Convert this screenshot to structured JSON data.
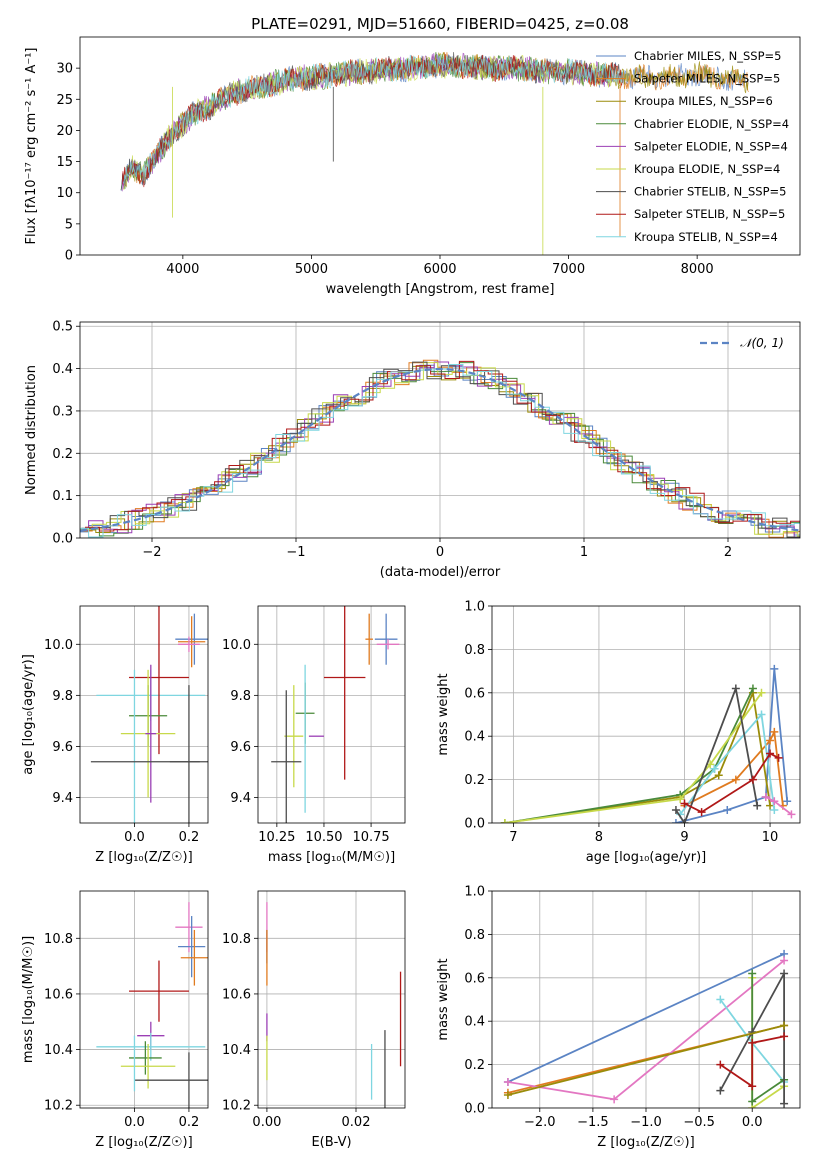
{
  "figure_title": "PLATE=0291, MJD=51660, FIBERID=0425, z=0.08",
  "chart_data": [
    {
      "id": "spectrum",
      "type": "line",
      "xlabel": "wavelength [Angstrom, rest frame]",
      "ylabel": "Flux [fλ10⁻¹⁷ erg cm⁻² s⁻¹ A⁻¹]",
      "xlim": [
        3200,
        8800
      ],
      "ylim": [
        0,
        35
      ],
      "xticks": [
        4000,
        5000,
        6000,
        7000,
        8000
      ],
      "yticks": [
        0,
        5,
        10,
        15,
        20,
        25,
        30
      ],
      "grid": false,
      "legend_position": "top-right",
      "continuum": {
        "x": [
          3520,
          3600,
          3700,
          3800,
          3900,
          4000,
          4100,
          4200,
          4300,
          4400,
          4500,
          4600,
          4700,
          4800,
          4900,
          5000,
          5200,
          5400,
          5600,
          5800,
          6000,
          6200,
          6400,
          6600,
          6800,
          7000,
          7200,
          7400,
          7600,
          7800,
          8000,
          8200,
          8400
        ],
        "y": [
          11,
          14,
          13,
          16,
          19,
          21,
          23,
          23.5,
          25,
          26,
          26.5,
          27,
          27.5,
          28,
          28.5,
          28.5,
          29,
          29.5,
          29.8,
          30,
          30.5,
          30.3,
          30,
          30,
          29.5,
          29.5,
          29,
          28.8,
          28.5,
          28.5,
          29,
          28.5,
          28
        ]
      },
      "series": [
        {
          "name": "Chabrier MILES, N_SSP=5",
          "color": "#5b84c4"
        },
        {
          "name": "Salpeter MILES, N_SSP=5",
          "color": "#e07b20"
        },
        {
          "name": "Kroupa MILES, N_SSP=6",
          "color": "#9a8c0a"
        },
        {
          "name": "Chabrier ELODIE, N_SSP=4",
          "color": "#4a8a3a"
        },
        {
          "name": "Salpeter ELODIE, N_SSP=4",
          "color": "#9b3fb5"
        },
        {
          "name": "Kroupa ELODIE, N_SSP=4",
          "color": "#c7d94a"
        },
        {
          "name": "Chabrier STELIB, N_SSP=5",
          "color": "#4d4d4d"
        },
        {
          "name": "Salpeter STELIB, N_SSP=5",
          "color": "#b01818"
        },
        {
          "name": "Kroupa STELIB, N_SSP=4",
          "color": "#7fd6e0"
        }
      ]
    },
    {
      "id": "residuals",
      "type": "line",
      "xlabel": "(data-model)/error",
      "ylabel": "Normed distribution",
      "xlim": [
        -2.5,
        2.5
      ],
      "ylim": [
        0,
        0.51
      ],
      "xticks": [
        -2,
        -1,
        0,
        1,
        2
      ],
      "yticks": [
        0.0,
        0.1,
        0.2,
        0.3,
        0.4,
        0.5
      ],
      "grid": true,
      "legend_position": "top-right",
      "reference": {
        "name": "𝒩(0, 1)",
        "color": "#5b84c4"
      },
      "histogram_series": [
        {
          "color": "#5b84c4"
        },
        {
          "color": "#e07b20"
        },
        {
          "color": "#9a8c0a"
        },
        {
          "color": "#4a8a3a"
        },
        {
          "color": "#9b3fb5"
        },
        {
          "color": "#c7d94a"
        },
        {
          "color": "#4d4d4d"
        },
        {
          "color": "#b01818"
        },
        {
          "color": "#7fd6e0"
        }
      ]
    },
    {
      "id": "age_vs_Z",
      "type": "scatter",
      "xlabel": "Z [log₁₀(Z/Z☉)]",
      "ylabel": "age  [log₁₀(age/yr)]",
      "xlim": [
        -0.2,
        0.27
      ],
      "ylim": [
        9.3,
        10.15
      ],
      "xticks": [
        0.0,
        0.2
      ],
      "yticks": [
        9.4,
        9.6,
        9.8,
        10.0
      ],
      "grid": true,
      "points": [
        {
          "x": 0.22,
          "y": 10.02,
          "xerr": 0.07,
          "yerr": 0.1,
          "color": "#5b84c4"
        },
        {
          "x": 0.21,
          "y": 10.01,
          "xerr": 0.05,
          "yerr": 0.1,
          "color": "#e07b20"
        },
        {
          "x": 0.2,
          "y": 10.0,
          "xerr": 0.04,
          "yerr": 0.03,
          "color": "#e377c2"
        },
        {
          "x": 0.06,
          "y": 9.8,
          "xerr": 0.2,
          "yerr": 0.1,
          "color": "#7fd6e0"
        },
        {
          "x": 0.09,
          "y": 9.87,
          "xerr": 0.11,
          "yerr": 0.3,
          "color": "#b01818"
        },
        {
          "x": 0.05,
          "y": 9.72,
          "xerr": 0.07,
          "yerr": 0.12,
          "color": "#4a8a3a"
        },
        {
          "x": 0.05,
          "y": 9.65,
          "xerr": 0.1,
          "yerr": 0.25,
          "color": "#c7d94a"
        },
        {
          "x": 0.06,
          "y": 9.65,
          "xerr": 0.02,
          "yerr": 0.27,
          "color": "#9b3fb5"
        },
        {
          "x": 0.2,
          "y": 9.54,
          "xerr": 0.07,
          "yerr": 0.3,
          "color": "#4d4d4d"
        },
        {
          "x": 0.0,
          "y": 9.54,
          "xerr": 0.0,
          "yerr": 0.36,
          "color": "#7fd6e0"
        },
        {
          "x": 0.04,
          "y": 9.54,
          "xerr": 0.2,
          "yerr": 0.0,
          "color": "#4d4d4d"
        }
      ]
    },
    {
      "id": "age_vs_mass",
      "type": "scatter",
      "xlabel": "mass [log₁₀(M/M☉)]",
      "ylabel": "",
      "xlim": [
        10.15,
        10.93
      ],
      "ylim": [
        9.3,
        10.15
      ],
      "xticks": [
        10.25,
        10.5,
        10.75
      ],
      "tick_labels": [
        "10.25",
        "10.50",
        "10.75"
      ],
      "yticks": [
        9.4,
        9.6,
        9.8,
        10.0
      ],
      "grid": true,
      "points": [
        {
          "x": 10.83,
          "y": 10.02,
          "xerr": 0.06,
          "yerr": 0.1,
          "color": "#5b84c4"
        },
        {
          "x": 10.74,
          "y": 10.02,
          "xerr": 0.02,
          "yerr": 0.1,
          "color": "#e07b20"
        },
        {
          "x": 10.84,
          "y": 10.0,
          "xerr": 0.06,
          "yerr": 0.02,
          "color": "#e377c2"
        },
        {
          "x": 10.61,
          "y": 9.87,
          "xerr": 0.11,
          "yerr": 0.4,
          "color": "#b01818"
        },
        {
          "x": 10.4,
          "y": 9.73,
          "xerr": 0.05,
          "yerr": 0.12,
          "color": "#4a8a3a"
        },
        {
          "x": 10.34,
          "y": 9.64,
          "xerr": 0.05,
          "yerr": 0.2,
          "color": "#c7d94a"
        },
        {
          "x": 10.46,
          "y": 9.64,
          "xerr": 0.04,
          "yerr": 0.0,
          "color": "#9b3fb5"
        },
        {
          "x": 10.4,
          "y": 9.63,
          "xerr": 0.0,
          "yerr": 0.29,
          "color": "#7fd6e0"
        },
        {
          "x": 10.3,
          "y": 9.54,
          "xerr": 0.08,
          "yerr": 0.28,
          "color": "#4d4d4d"
        }
      ]
    },
    {
      "id": "weight_vs_age",
      "type": "line",
      "xlabel": "age  [log₁₀(age/yr)]",
      "ylabel": "mass weight",
      "xlim": [
        6.75,
        10.35
      ],
      "ylim": [
        0,
        1
      ],
      "xticks": [
        7,
        8,
        9,
        10
      ],
      "yticks": [
        0.0,
        0.2,
        0.4,
        0.6,
        0.8,
        1.0
      ],
      "grid": true,
      "series": [
        {
          "color": "#5b84c4",
          "x": [
            8.9,
            9.5,
            9.95,
            10.05,
            10.2
          ],
          "y": [
            0.0,
            0.06,
            0.12,
            0.71,
            0.1
          ]
        },
        {
          "color": "#e07b20",
          "x": [
            9.0,
            9.6,
            10.0,
            10.05,
            10.15
          ],
          "y": [
            0.08,
            0.2,
            0.38,
            0.42,
            0.08
          ]
        },
        {
          "color": "#9a8c0a",
          "x": [
            6.9,
            8.95,
            9.4,
            9.8,
            10.0
          ],
          "y": [
            0.0,
            0.12,
            0.22,
            0.6,
            0.08
          ]
        },
        {
          "color": "#4a8a3a",
          "x": [
            6.9,
            8.95,
            9.35,
            9.8
          ],
          "y": [
            0.0,
            0.13,
            0.25,
            0.62
          ]
        },
        {
          "color": "#c7d94a",
          "x": [
            6.9,
            8.95,
            9.3,
            9.9
          ],
          "y": [
            0.0,
            0.11,
            0.27,
            0.6
          ]
        },
        {
          "color": "#7fd6e0",
          "x": [
            8.95,
            9.35,
            9.9,
            10.05
          ],
          "y": [
            0.04,
            0.25,
            0.5,
            0.06
          ]
        },
        {
          "color": "#4d4d4d",
          "x": [
            8.9,
            9.0,
            9.6,
            9.85
          ],
          "y": [
            0.06,
            0.0,
            0.62,
            0.08
          ]
        },
        {
          "color": "#b01818",
          "x": [
            9.0,
            9.2,
            9.8,
            10.0,
            10.1
          ],
          "y": [
            0.09,
            0.05,
            0.2,
            0.32,
            0.3
          ]
        },
        {
          "color": "#e377c2",
          "x": [
            9.95,
            10.05,
            10.25
          ],
          "y": [
            0.12,
            0.1,
            0.04
          ]
        }
      ]
    },
    {
      "id": "mass_vs_Z",
      "type": "scatter",
      "xlabel": "Z [log₁₀(Z/Z☉)]",
      "ylabel": "mass [log₁₀(M/M☉)]",
      "xlim": [
        -0.2,
        0.27
      ],
      "ylim": [
        10.19,
        10.97
      ],
      "xticks": [
        0.0,
        0.2
      ],
      "yticks": [
        10.2,
        10.4,
        10.6,
        10.8
      ],
      "grid": true,
      "points": [
        {
          "x": 0.2,
          "y": 10.84,
          "xerr": 0.05,
          "yerr": 0.09,
          "color": "#e377c2"
        },
        {
          "x": 0.21,
          "y": 10.77,
          "xerr": 0.05,
          "yerr": 0.11,
          "color": "#5b84c4"
        },
        {
          "x": 0.22,
          "y": 10.73,
          "xerr": 0.05,
          "yerr": 0.1,
          "color": "#e07b20"
        },
        {
          "x": 0.09,
          "y": 10.61,
          "xerr": 0.11,
          "yerr": 0.11,
          "color": "#b01818"
        },
        {
          "x": 0.06,
          "y": 10.45,
          "xerr": 0.05,
          "yerr": 0.05,
          "color": "#9b3fb5"
        },
        {
          "x": 0.06,
          "y": 10.41,
          "xerr": 0.2,
          "yerr": 0.05,
          "color": "#7fd6e0"
        },
        {
          "x": 0.04,
          "y": 10.37,
          "xerr": 0.06,
          "yerr": 0.06,
          "color": "#4a8a3a"
        },
        {
          "x": 0.05,
          "y": 10.34,
          "xerr": 0.1,
          "yerr": 0.08,
          "color": "#c7d94a"
        },
        {
          "x": 0.2,
          "y": 10.29,
          "xerr": 0.2,
          "yerr": 0.1,
          "color": "#4d4d4d"
        },
        {
          "x": 0.0,
          "y": 10.35,
          "xerr": 0.0,
          "yerr": 0.1,
          "color": "#7fd6e0"
        }
      ]
    },
    {
      "id": "mass_vs_ebv",
      "type": "scatter",
      "xlabel": "E(B-V)",
      "ylabel": "",
      "xlim": [
        -0.002,
        0.031
      ],
      "ylim": [
        10.19,
        10.97
      ],
      "xticks": [
        0.0,
        0.02
      ],
      "tick_labels": [
        "0.00",
        "0.02"
      ],
      "yticks": [
        10.2,
        10.4,
        10.6,
        10.8
      ],
      "grid": true,
      "points": [
        {
          "x": 0.0,
          "y": 10.84,
          "xerr": 0,
          "yerr": 0.09,
          "color": "#e377c2"
        },
        {
          "x": 0.0,
          "y": 10.77,
          "xerr": 0,
          "yerr": 0.06,
          "color": "#5b84c4"
        },
        {
          "x": 0.0,
          "y": 10.73,
          "xerr": 0,
          "yerr": 0.1,
          "color": "#e07b20"
        },
        {
          "x": 0.0,
          "y": 10.48,
          "xerr": 0,
          "yerr": 0.05,
          "color": "#9b3fb5"
        },
        {
          "x": 0.0,
          "y": 10.37,
          "xerr": 0,
          "yerr": 0.08,
          "color": "#c7d94a"
        },
        {
          "x": 0.0235,
          "y": 10.32,
          "xerr": 0,
          "yerr": 0.1,
          "color": "#7fd6e0"
        },
        {
          "x": 0.0265,
          "y": 10.33,
          "xerr": 0,
          "yerr": 0.14,
          "color": "#4d4d4d"
        },
        {
          "x": 0.03,
          "y": 10.51,
          "xerr": 0,
          "yerr": 0.17,
          "color": "#b01818"
        }
      ]
    },
    {
      "id": "weight_vs_Z",
      "type": "line",
      "xlabel": "Z [log₁₀(Z/Z☉)]",
      "ylabel": "mass weight",
      "xlim": [
        -2.45,
        0.45
      ],
      "ylim": [
        0,
        1
      ],
      "xticks": [
        -2.0,
        -1.5,
        -1.0,
        -0.5,
        0.0
      ],
      "tick_labels": [
        "−2.0",
        "−1.5",
        "−1.0",
        "−0.5",
        "0.0"
      ],
      "yticks": [
        0.0,
        0.2,
        0.4,
        0.6,
        0.8,
        1.0
      ],
      "grid": true,
      "series": [
        {
          "color": "#5b84c4",
          "x": [
            -2.3,
            0.3
          ],
          "y": [
            0.12,
            0.71
          ]
        },
        {
          "color": "#e07b20",
          "x": [
            -2.3,
            0.3
          ],
          "y": [
            0.07,
            0.38
          ]
        },
        {
          "color": "#e377c2",
          "x": [
            -2.3,
            -1.3,
            0.3
          ],
          "y": [
            0.12,
            0.04,
            0.68
          ]
        },
        {
          "color": "#7fd6e0",
          "x": [
            -0.3,
            0.0,
            0.3
          ],
          "y": [
            0.5,
            0.3,
            0.12
          ]
        },
        {
          "color": "#c7d94a",
          "x": [
            0.0,
            0.0,
            0.3
          ],
          "y": [
            0.6,
            0.0,
            0.1
          ]
        },
        {
          "color": "#4a8a3a",
          "x": [
            0.0,
            0.0,
            0.3
          ],
          "y": [
            0.62,
            0.03,
            0.13
          ]
        },
        {
          "color": "#4d4d4d",
          "x": [
            -0.3,
            0.0,
            0.3,
            0.3
          ],
          "y": [
            0.08,
            0.35,
            0.62,
            0.02
          ]
        },
        {
          "color": "#b01818",
          "x": [
            -0.3,
            0.0,
            0.0,
            0.3
          ],
          "y": [
            0.2,
            0.1,
            0.3,
            0.33
          ]
        },
        {
          "color": "#9a8c0a",
          "x": [
            -2.3,
            0.3
          ],
          "y": [
            0.06,
            0.38
          ]
        }
      ]
    }
  ]
}
